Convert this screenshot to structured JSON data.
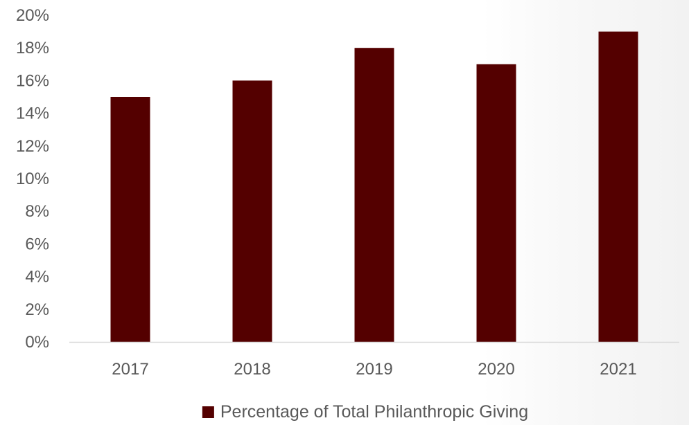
{
  "chart_data": {
    "type": "bar",
    "categories": [
      "2017",
      "2018",
      "2019",
      "2020",
      "2021"
    ],
    "series": [
      {
        "name": "Percentage of Total Philanthropic Giving",
        "values": [
          15,
          16,
          18,
          17,
          19
        ],
        "color": "#540000"
      }
    ],
    "ylim": [
      0,
      20
    ],
    "y_ticks": [
      "0%",
      "2%",
      "4%",
      "6%",
      "8%",
      "10%",
      "12%",
      "14%",
      "16%",
      "18%",
      "20%"
    ],
    "y_unit": "%",
    "grid": false,
    "legend": "bottom-center"
  },
  "colors": {
    "bar": "#540000",
    "axis": "#d9d9d9",
    "text": "#595959"
  }
}
